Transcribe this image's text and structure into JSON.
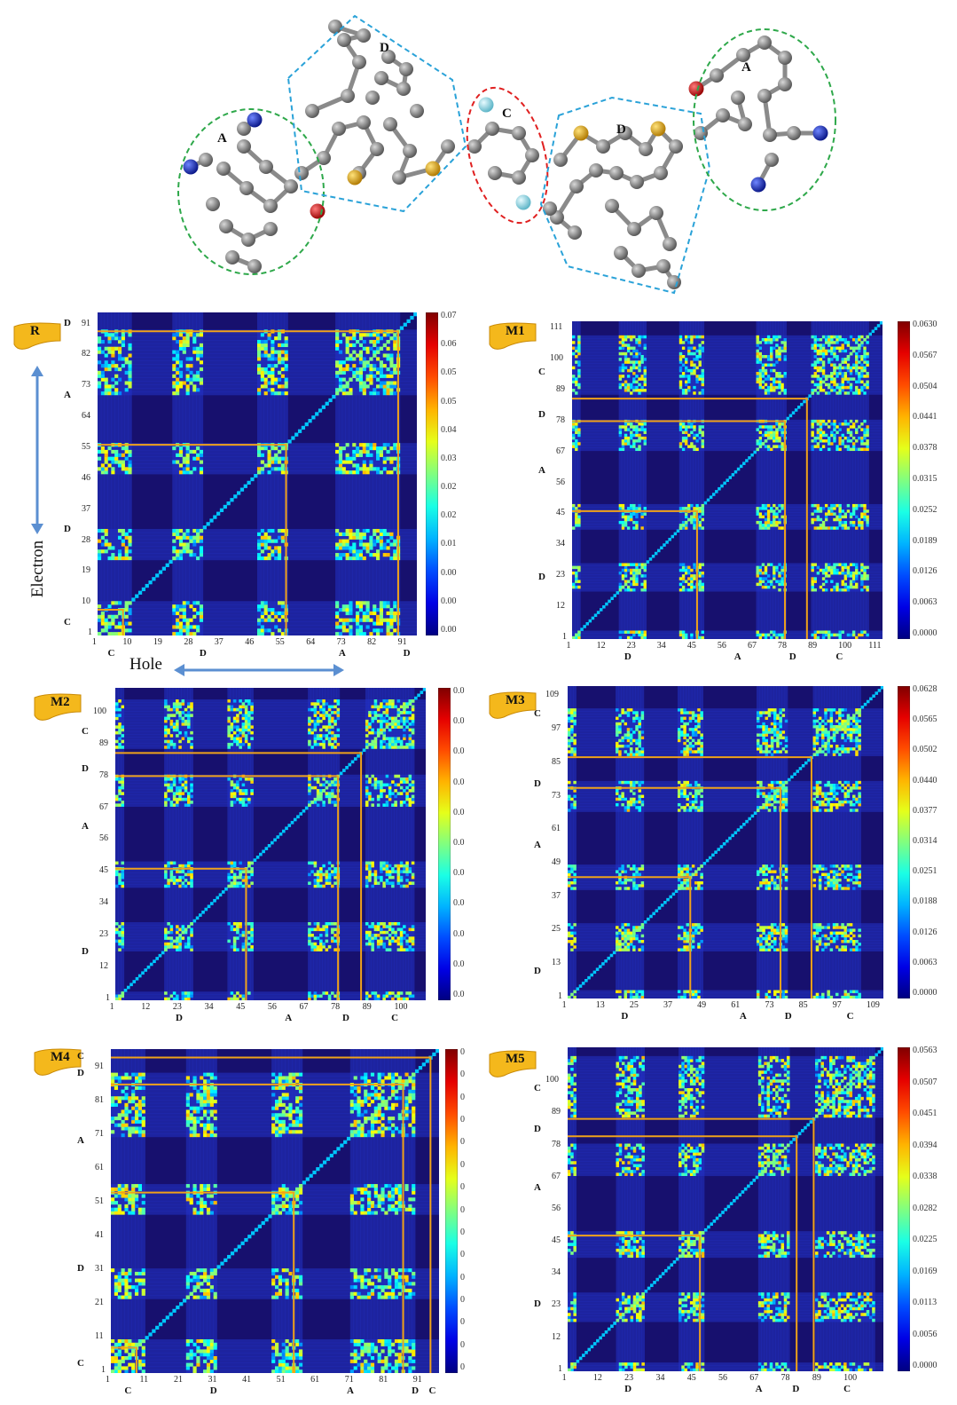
{
  "colors": {
    "background": "#17106e",
    "orange_box": "#f0a21a",
    "badge": "#f4b81c",
    "arrow": "#5b8fd1",
    "carbon": "#8a8a8a",
    "nitrogen": "#1a2fb0",
    "oxygen": "#c81212",
    "sulfur": "#e0a51a",
    "fluorine": "#9fe0ec",
    "group_A": "#2ea84a",
    "group_D": "#2aa2d8",
    "group_C": "#e02020"
  },
  "molecule": {
    "fragment_labels": [
      {
        "id": "A_left",
        "text": "A"
      },
      {
        "id": "D_left",
        "text": "D"
      },
      {
        "id": "C_mid",
        "text": "C"
      },
      {
        "id": "D_right",
        "text": "D"
      },
      {
        "id": "A_right",
        "text": "A"
      }
    ]
  },
  "axis_titles": {
    "electron": "Electron",
    "hole": "Hole"
  },
  "chart_data": [
    {
      "type": "heatmap",
      "id": "R",
      "panel_label": "R",
      "xlabel": "Hole",
      "ylabel": "Electron",
      "n_atoms": 94,
      "ticks": [
        "1",
        "10",
        "19",
        "28",
        "37",
        "46",
        "55",
        "64",
        "73",
        "82",
        "91"
      ],
      "tick_values": [
        1,
        10,
        19,
        28,
        37,
        46,
        55,
        64,
        73,
        82,
        91
      ],
      "region_labels_x": [
        {
          "text": "C",
          "at": 4
        },
        {
          "text": "D",
          "at": 31
        },
        {
          "text": "A",
          "at": 72
        },
        {
          "text": "D",
          "at": 91
        }
      ],
      "region_labels_y": [
        {
          "text": "C",
          "at": 4
        },
        {
          "text": "D",
          "at": 31
        },
        {
          "text": "A",
          "at": 70
        },
        {
          "text": "D",
          "at": 91
        }
      ],
      "boundaries": [
        8,
        56,
        89
      ],
      "hot_blocks": [
        [
          1,
          10
        ],
        [
          23,
          31
        ],
        [
          48,
          56
        ],
        [
          71,
          89
        ]
      ],
      "colorbar_ticks": [
        "0.07",
        "0.06",
        "0.05",
        "0.05",
        "0.04",
        "0.03",
        "0.02",
        "0.02",
        "0.01",
        "0.00",
        "0.00",
        "0.00"
      ]
    },
    {
      "type": "heatmap",
      "id": "M1",
      "panel_label": "M1",
      "n_atoms": 113,
      "ticks": [
        "1",
        "12",
        "23",
        "34",
        "45",
        "56",
        "67",
        "78",
        "89",
        "100",
        "111"
      ],
      "tick_values": [
        1,
        12,
        23,
        34,
        45,
        56,
        67,
        78,
        89,
        100,
        111
      ],
      "region_labels_x": [
        {
          "text": "D",
          "at": 20
        },
        {
          "text": "A",
          "at": 60
        },
        {
          "text": "D",
          "at": 80
        },
        {
          "text": "C",
          "at": 97
        }
      ],
      "region_labels_y": [
        {
          "text": "D",
          "at": 22
        },
        {
          "text": "A",
          "at": 60
        },
        {
          "text": "D",
          "at": 80
        },
        {
          "text": "C",
          "at": 95
        }
      ],
      "boundaries": [
        46,
        78,
        86
      ],
      "hot_blocks": [
        [
          1,
          3
        ],
        [
          18,
          27
        ],
        [
          40,
          48
        ],
        [
          68,
          78
        ],
        [
          88,
          108
        ]
      ],
      "colorbar_ticks": [
        "0.0630",
        "0.0567",
        "0.0504",
        "0.0441",
        "0.0378",
        "0.0315",
        "0.0252",
        "0.0189",
        "0.0126",
        "0.0063",
        "0.0000"
      ]
    },
    {
      "type": "heatmap",
      "id": "M2",
      "panel_label": "M2",
      "n_atoms": 108,
      "ticks": [
        "1",
        "12",
        "23",
        "34",
        "45",
        "56",
        "67",
        "78",
        "89",
        "100"
      ],
      "tick_values": [
        1,
        12,
        23,
        34,
        45,
        56,
        67,
        78,
        89,
        100
      ],
      "region_labels_x": [
        {
          "text": "D",
          "at": 22
        },
        {
          "text": "A",
          "at": 60
        },
        {
          "text": "D",
          "at": 80
        },
        {
          "text": "C",
          "at": 97
        }
      ],
      "region_labels_y": [
        {
          "text": "D",
          "at": 17
        },
        {
          "text": "A",
          "at": 60
        },
        {
          "text": "D",
          "at": 80
        },
        {
          "text": "C",
          "at": 93
        }
      ],
      "boundaries": [
        46,
        78,
        86
      ],
      "hot_blocks": [
        [
          1,
          3
        ],
        [
          18,
          27
        ],
        [
          40,
          48
        ],
        [
          68,
          78
        ],
        [
          88,
          104
        ]
      ],
      "colorbar_ticks": [
        "0.0",
        "0.0",
        "0.0",
        "0.0",
        "0.0",
        "0.0",
        "0.0",
        "0.0",
        "0.0",
        "0.0",
        "0.0"
      ]
    },
    {
      "type": "heatmap",
      "id": "M3",
      "panel_label": "M3",
      "n_atoms": 112,
      "ticks": [
        "1",
        "13",
        "25",
        "37",
        "49",
        "61",
        "73",
        "85",
        "97",
        "109"
      ],
      "tick_values": [
        1,
        13,
        25,
        37,
        49,
        61,
        73,
        85,
        97,
        109
      ],
      "region_labels_x": [
        {
          "text": "D",
          "at": 20
        },
        {
          "text": "A",
          "at": 62
        },
        {
          "text": "D",
          "at": 78
        },
        {
          "text": "C",
          "at": 100
        }
      ],
      "region_labels_y": [
        {
          "text": "D",
          "at": 10
        },
        {
          "text": "A",
          "at": 55
        },
        {
          "text": "D",
          "at": 77
        },
        {
          "text": "C",
          "at": 102
        }
      ],
      "boundaries": [
        44,
        76,
        87
      ],
      "hot_blocks": [
        [
          1,
          3
        ],
        [
          18,
          27
        ],
        [
          40,
          48
        ],
        [
          68,
          78
        ],
        [
          88,
          104
        ]
      ],
      "colorbar_ticks": [
        "0.0628",
        "0.0565",
        "0.0502",
        "0.0440",
        "0.0377",
        "0.0314",
        "0.0251",
        "0.0188",
        "0.0126",
        "0.0063",
        "0.0000"
      ]
    },
    {
      "type": "heatmap",
      "id": "M4",
      "panel_label": "M4",
      "n_atoms": 96,
      "ticks": [
        "1",
        "11",
        "21",
        "31",
        "41",
        "51",
        "61",
        "71",
        "81",
        "91"
      ],
      "tick_values": [
        1,
        11,
        21,
        31,
        41,
        51,
        61,
        71,
        81,
        91
      ],
      "region_labels_x": [
        {
          "text": "C",
          "at": 5
        },
        {
          "text": "D",
          "at": 30
        },
        {
          "text": "A",
          "at": 70
        },
        {
          "text": "D",
          "at": 89
        },
        {
          "text": "C",
          "at": 94
        }
      ],
      "region_labels_y": [
        {
          "text": "C",
          "at": 3
        },
        {
          "text": "D",
          "at": 31
        },
        {
          "text": "A",
          "at": 69
        },
        {
          "text": "D",
          "at": 89
        },
        {
          "text": "C",
          "at": 94
        }
      ],
      "boundaries": [
        8,
        54,
        86,
        94
      ],
      "hot_blocks": [
        [
          1,
          10
        ],
        [
          23,
          31
        ],
        [
          48,
          56
        ],
        [
          71,
          89
        ]
      ],
      "colorbar_ticks": [
        "0",
        "0",
        "0",
        "0",
        "0",
        "0",
        "0",
        "0",
        "0",
        "0",
        "0",
        "0",
        "0",
        "0",
        "0"
      ]
    },
    {
      "type": "heatmap",
      "id": "M5",
      "panel_label": "M5",
      "n_atoms": 111,
      "ticks": [
        "1",
        "12",
        "23",
        "34",
        "45",
        "56",
        "67",
        "78",
        "89",
        "100"
      ],
      "tick_values": [
        1,
        12,
        23,
        34,
        45,
        56,
        67,
        78,
        89,
        100
      ],
      "region_labels_x": [
        {
          "text": "D",
          "at": 21
        },
        {
          "text": "A",
          "at": 67
        },
        {
          "text": "D",
          "at": 80
        },
        {
          "text": "C",
          "at": 98
        }
      ],
      "region_labels_y": [
        {
          "text": "D",
          "at": 23
        },
        {
          "text": "A",
          "at": 63
        },
        {
          "text": "D",
          "at": 83
        },
        {
          "text": "C",
          "at": 97
        }
      ],
      "boundaries": [
        47,
        81,
        87
      ],
      "hot_blocks": [
        [
          1,
          3
        ],
        [
          18,
          27
        ],
        [
          40,
          48
        ],
        [
          68,
          78
        ],
        [
          88,
          108
        ]
      ],
      "colorbar_ticks": [
        "0.0563",
        "0.0507",
        "0.0451",
        "0.0394",
        "0.0338",
        "0.0282",
        "0.0225",
        "0.0169",
        "0.0113",
        "0.0056",
        "0.0000"
      ]
    }
  ]
}
